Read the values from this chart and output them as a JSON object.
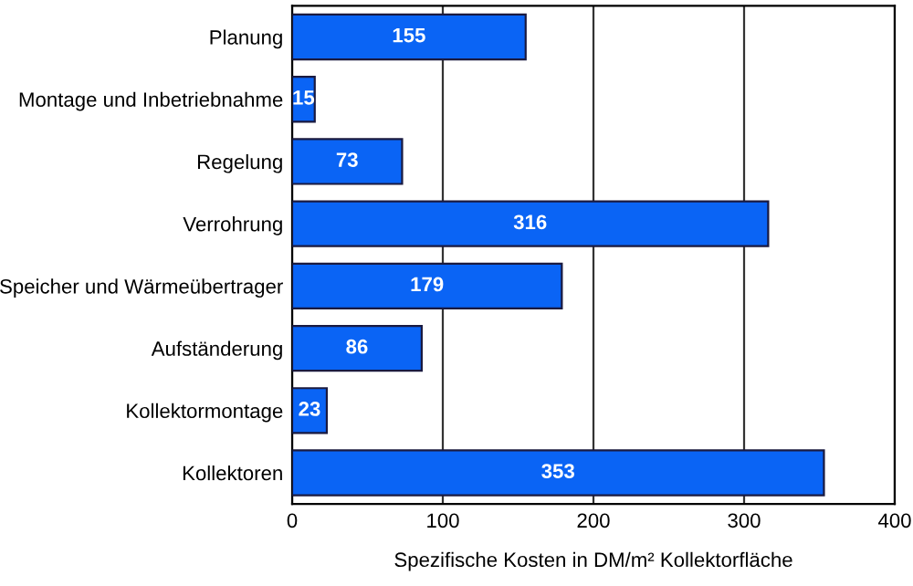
{
  "chart_data": {
    "type": "bar",
    "orientation": "horizontal",
    "xlabel": "Spezifische Kosten in DM/m² Kollektorfläche",
    "categories": [
      "Planung",
      "Montage und Inbetriebnahme",
      "Regelung",
      "Verrohrung",
      "Speicher und Wärmeübertrager",
      "Aufständerung",
      "Kollektormontage",
      "Kollektoren"
    ],
    "values": [
      155,
      15,
      73,
      316,
      179,
      86,
      23,
      353
    ],
    "color": "#0a64f5",
    "xlim": [
      0,
      400
    ],
    "xticks": [
      0,
      100,
      200,
      300,
      400
    ],
    "grid": "x",
    "data_labels": true
  }
}
